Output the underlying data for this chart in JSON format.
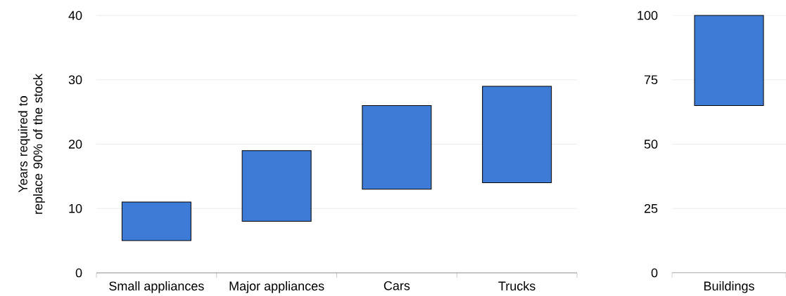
{
  "chart_data": [
    {
      "type": "bar",
      "ylabel": "Years required to replace 90% of the stock",
      "categories": [
        "Small appliances",
        "Major appliances",
        "Cars",
        "Trucks"
      ],
      "values": [
        6,
        11,
        13,
        15
      ],
      "base": [
        5,
        8,
        13,
        14
      ],
      "color": "#3e7bd6",
      "ylim": [
        0,
        40
      ],
      "yticks": [
        0,
        10,
        20,
        30,
        40
      ],
      "grid": "y"
    },
    {
      "type": "bar",
      "categories": [
        "Buildings"
      ],
      "values": [
        35
      ],
      "base": [
        65
      ],
      "color": "#3e7bd6",
      "ylim": [
        0,
        100
      ],
      "yticks": [
        0,
        25,
        50,
        75,
        100
      ],
      "grid": "y"
    }
  ]
}
